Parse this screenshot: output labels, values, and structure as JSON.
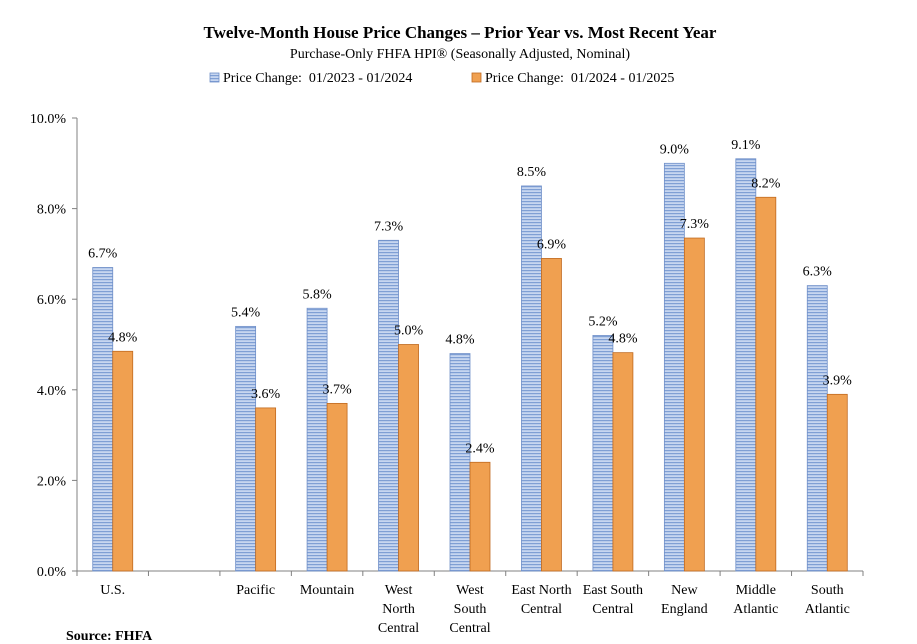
{
  "chart_data": {
    "type": "bar",
    "title": "Twelve-Month House Price Changes – Prior Year vs. Most Recent Year",
    "subtitle": "Purchase-Only FHFA HPI® (Seasonally Adjusted, Nominal)",
    "categories": [
      [
        "U.S."
      ],
      [],
      [
        "Pacific"
      ],
      [
        "Mountain"
      ],
      [
        "West",
        "North",
        "Central"
      ],
      [
        "West",
        "South",
        "Central"
      ],
      [
        "East North",
        "Central"
      ],
      [
        "East South",
        "Central"
      ],
      [
        "New",
        "England"
      ],
      [
        "Middle",
        "Atlantic"
      ],
      [
        "South",
        "Atlantic"
      ]
    ],
    "series": [
      {
        "name": "Price Change:  01/2023 - 01/2024",
        "values": [
          6.7,
          null,
          5.4,
          5.8,
          7.3,
          4.8,
          8.5,
          5.2,
          9.0,
          9.1,
          6.3
        ],
        "labels": [
          "6.7%",
          "",
          "5.4%",
          "5.8%",
          "7.3%",
          "4.8%",
          "8.5%",
          "5.2%",
          "9.0%",
          "9.1%",
          "6.3%"
        ],
        "color": "#a9bfe6",
        "stripe": "#7f9fd4"
      },
      {
        "name": "Price Change:  01/2024 - 01/2025",
        "values": [
          4.85,
          null,
          3.6,
          3.7,
          5.0,
          2.4,
          6.9,
          4.82,
          7.35,
          8.25,
          3.9
        ],
        "labels": [
          "4.8%",
          "",
          "3.6%",
          "3.7%",
          "5.0%",
          "2.4%",
          "6.9%",
          "4.8%",
          "7.3%",
          "8.2%",
          "3.9%"
        ],
        "color": "#f0a050"
      }
    ],
    "yticks": [
      "0.0%",
      "2.0%",
      "4.0%",
      "6.0%",
      "8.0%",
      "10.0%"
    ],
    "ylim": [
      0,
      10
    ],
    "grid": false,
    "legend": "top-center"
  },
  "source": "Source: FHFA"
}
